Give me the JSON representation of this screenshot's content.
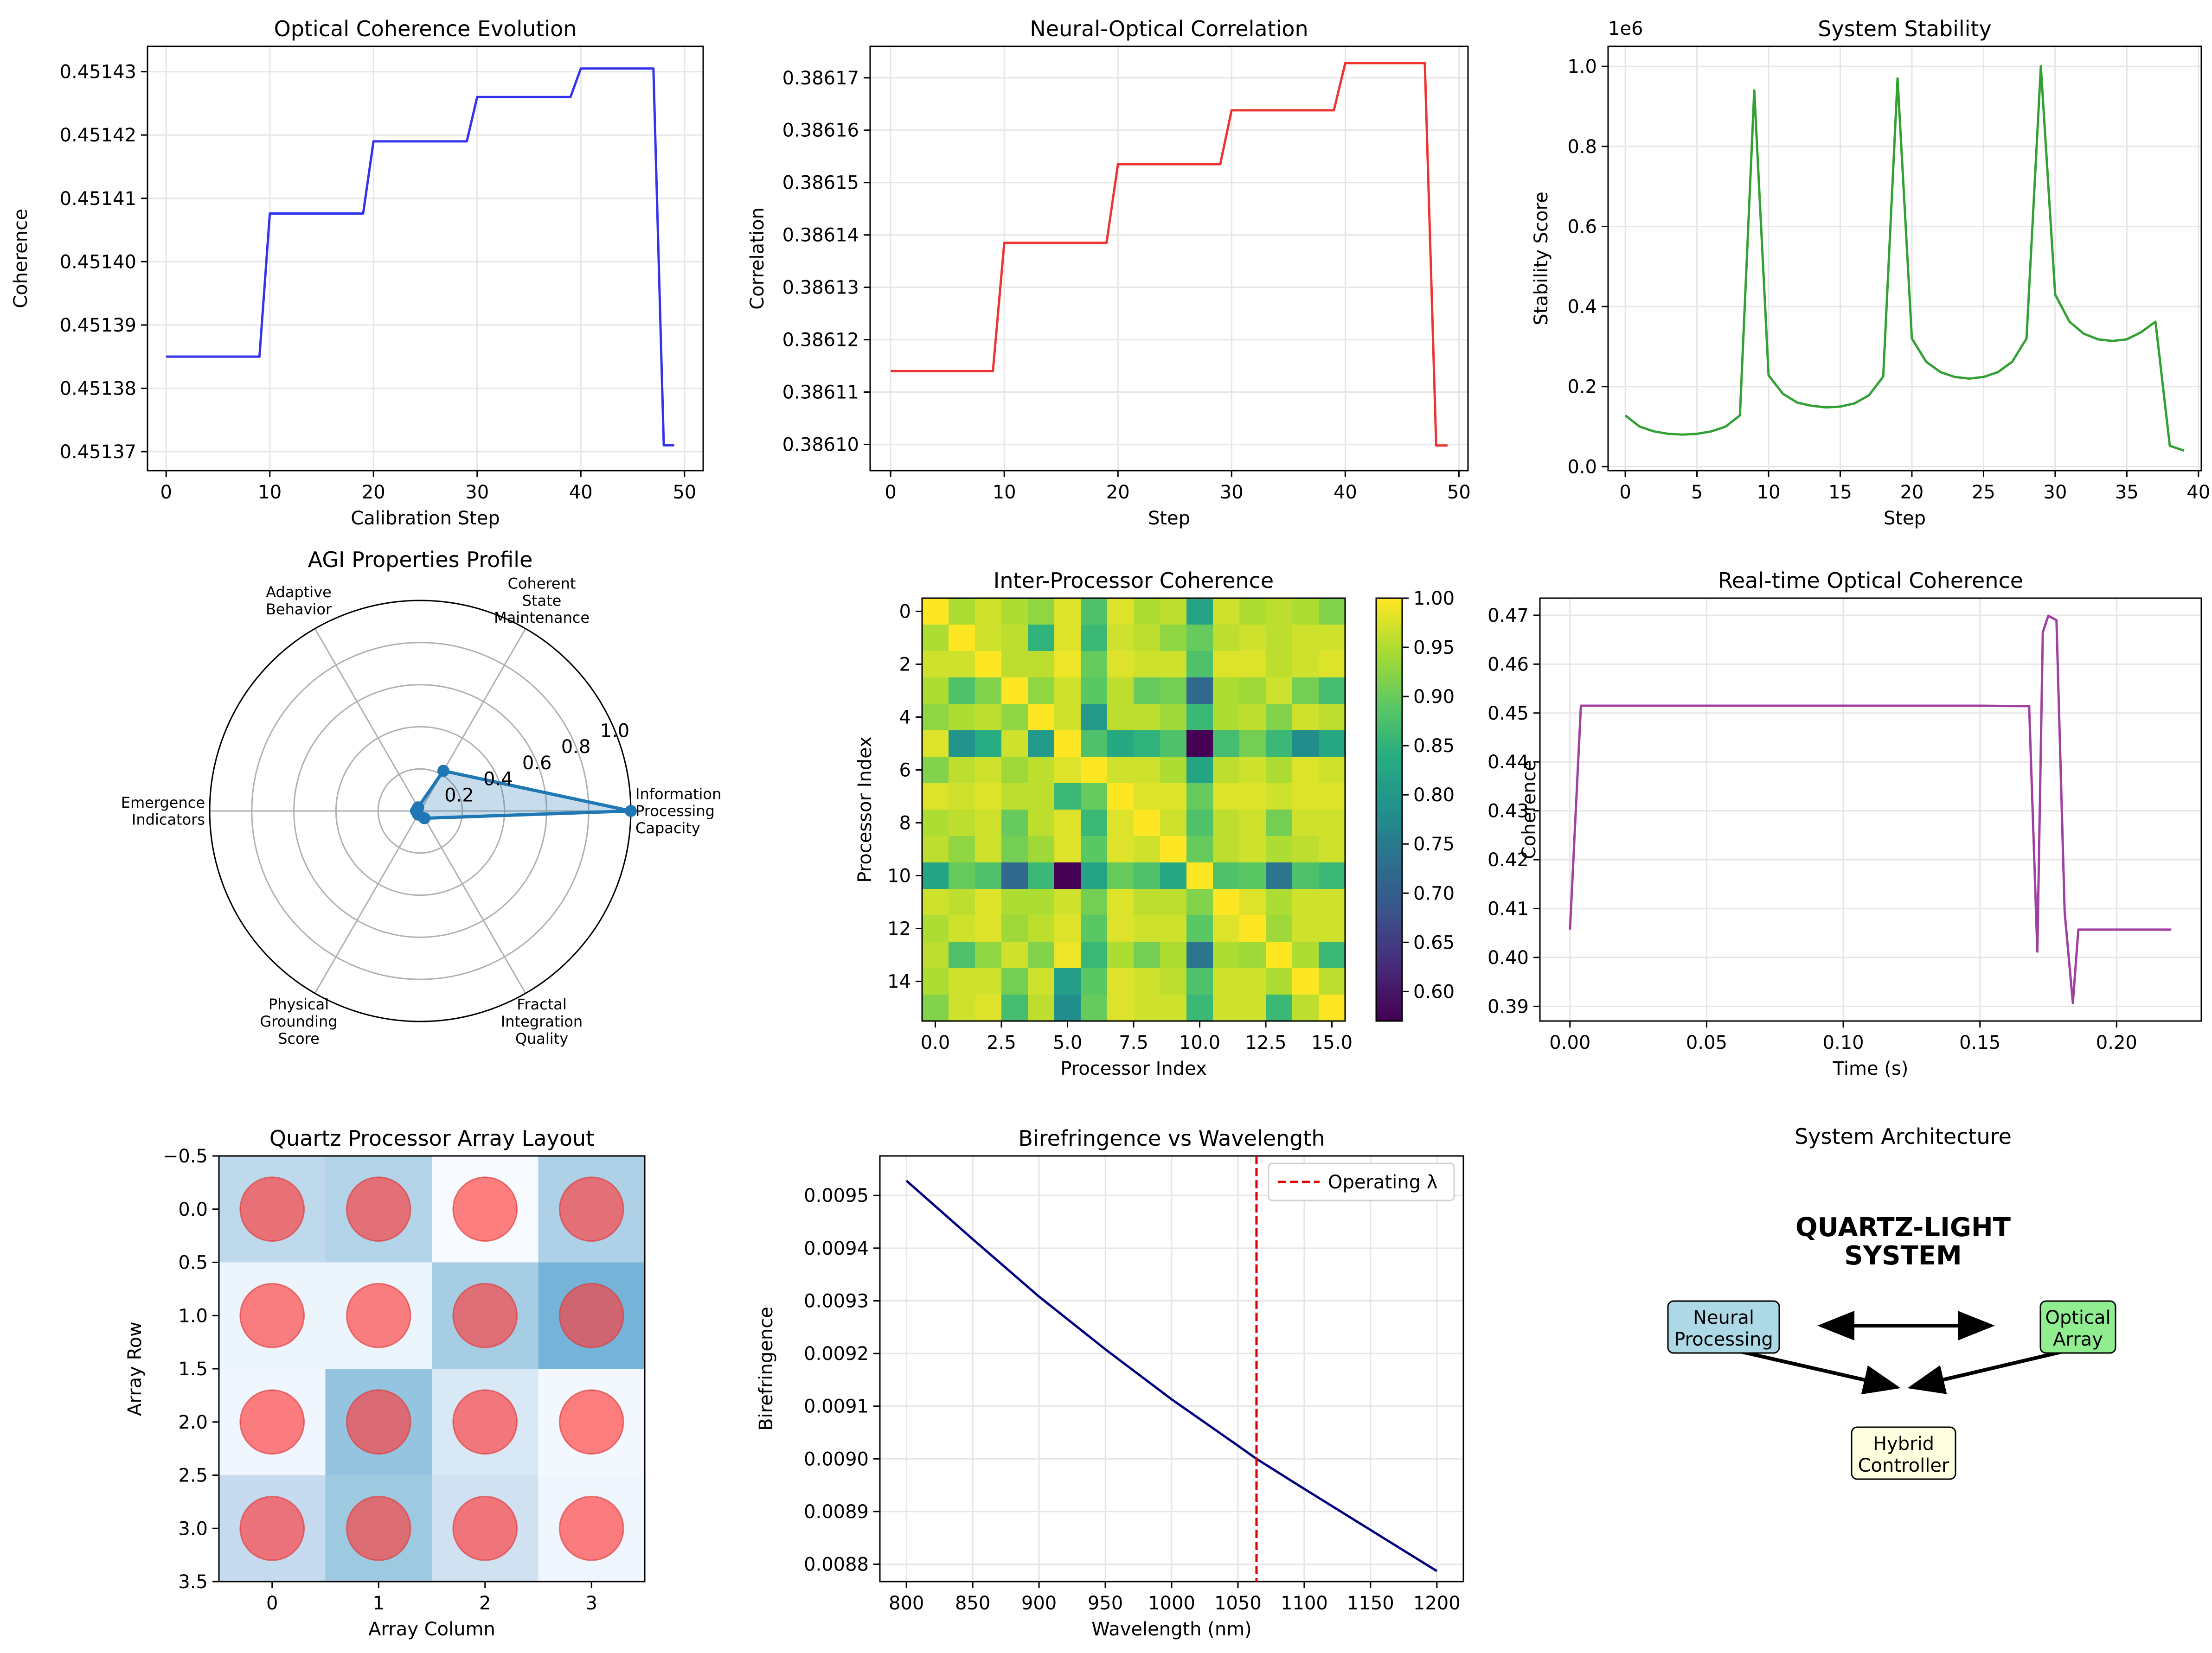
{
  "chart_data": [
    {
      "type": "line",
      "title": "Optical Coherence Evolution",
      "xlabel": "Calibration Step",
      "ylabel": "Coherence",
      "xlim": [
        -1.8,
        51.8
      ],
      "ylim": [
        0.451367,
        0.451434
      ],
      "xticks": [
        0,
        10,
        20,
        30,
        40,
        50
      ],
      "xtick_labels": [
        "0",
        "10",
        "20",
        "30",
        "40",
        "50"
      ],
      "yticks": [
        0.45137,
        0.45138,
        0.45139,
        0.4514,
        0.45141,
        0.45142,
        0.45143
      ],
      "ytick_labels": [
        "0.45137",
        "0.45138",
        "0.45139",
        "0.45140",
        "0.45141",
        "0.45142",
        "0.45143"
      ],
      "grid": true,
      "color": "#3333ee",
      "series": [
        {
          "x": [
            0,
            9,
            10,
            19,
            20,
            29,
            30,
            39,
            40,
            47,
            48,
            49
          ],
          "y": [
            0.451385,
            0.451385,
            0.4514076,
            0.4514076,
            0.451419,
            0.451419,
            0.451426,
            0.451426,
            0.4514305,
            0.4514305,
            0.451371,
            0.451371
          ]
        }
      ]
    },
    {
      "type": "line",
      "title": "Neural-Optical Correlation",
      "xlabel": "Step",
      "ylabel": "Correlation",
      "xlim": [
        -1.8,
        50.8
      ],
      "ylim": [
        0.386095,
        0.386176
      ],
      "xticks": [
        0,
        10,
        20,
        30,
        40,
        50
      ],
      "xtick_labels": [
        "0",
        "10",
        "20",
        "30",
        "40",
        "50"
      ],
      "yticks": [
        0.3861,
        0.38611,
        0.38612,
        0.38613,
        0.38614,
        0.38615,
        0.38616,
        0.38617
      ],
      "ytick_labels": [
        "0.38610",
        "0.38611",
        "0.38612",
        "0.38613",
        "0.38614",
        "0.38615",
        "0.38616",
        "0.38617"
      ],
      "grid": true,
      "color": "#ee3333",
      "series": [
        {
          "x": [
            0,
            9,
            10,
            19,
            20,
            29,
            30,
            39,
            40,
            47,
            48,
            49
          ],
          "y": [
            0.386114,
            0.386114,
            0.3861385,
            0.3861385,
            0.3861535,
            0.3861535,
            0.3861638,
            0.3861638,
            0.3861728,
            0.3861728,
            0.3860998,
            0.3860998
          ]
        }
      ]
    },
    {
      "type": "line",
      "title": "System Stability",
      "xlabel": "Step",
      "ylabel": "Stability Score",
      "offset_label": "1e6",
      "xlim": [
        -1.2,
        40.2
      ],
      "ylim": [
        -0.01,
        1.05
      ],
      "xticks": [
        0,
        5,
        10,
        15,
        20,
        25,
        30,
        35,
        40
      ],
      "xtick_labels": [
        "0",
        "5",
        "10",
        "15",
        "20",
        "25",
        "30",
        "35",
        "40"
      ],
      "yticks": [
        0.0,
        0.2,
        0.4,
        0.6,
        0.8,
        1.0
      ],
      "ytick_labels": [
        "0.0",
        "0.2",
        "0.4",
        "0.6",
        "0.8",
        "1.0"
      ],
      "grid": true,
      "color": "#33a033",
      "series": [
        {
          "x": [
            0,
            1,
            2,
            3,
            4,
            5,
            6,
            7,
            8,
            9,
            10,
            11,
            12,
            13,
            14,
            15,
            16,
            17,
            18,
            19,
            20,
            21,
            22,
            23,
            24,
            25,
            26,
            27,
            28,
            29,
            30,
            31,
            32,
            33,
            34,
            35,
            36,
            37,
            38,
            39
          ],
          "y": [
            0.128,
            0.1,
            0.088,
            0.082,
            0.08,
            0.082,
            0.088,
            0.1,
            0.128,
            0.94,
            0.228,
            0.182,
            0.16,
            0.152,
            0.148,
            0.15,
            0.158,
            0.178,
            0.225,
            0.97,
            0.32,
            0.262,
            0.236,
            0.224,
            0.22,
            0.224,
            0.236,
            0.262,
            0.32,
            1.0,
            0.43,
            0.362,
            0.332,
            0.318,
            0.314,
            0.318,
            0.336,
            0.362,
            0.052,
            0.04
          ]
        }
      ]
    },
    {
      "type": "radar",
      "title": "AGI Properties Profile",
      "axes": [
        "Information\nProcessing\nCapacity",
        "Coherent\nState\nMaintenance",
        "Adaptive\nBehavior",
        "Emergence\nIndicators",
        "Physical\nGrounding\nScore",
        "Fractal\nIntegration\nQuality"
      ],
      "values": [
        1.0,
        0.22,
        0.02,
        0.02,
        0.02,
        0.04
      ],
      "rlim": [
        0,
        1.0
      ],
      "rticks": [
        0.2,
        0.4,
        0.6,
        0.8,
        1.0
      ],
      "rtick_labels": [
        "0.2",
        "0.4",
        "0.6",
        "0.8",
        "1.0"
      ],
      "color": "#1f77b4"
    },
    {
      "type": "heatmap",
      "title": "Inter-Processor Coherence",
      "xlabel": "Processor Index",
      "ylabel": "Processor Index",
      "colormap": "viridis",
      "vmin": 0.57,
      "vmax": 1.0,
      "xticks": [
        0,
        2.5,
        5,
        7.5,
        10,
        12.5,
        15
      ],
      "xtick_labels": [
        "0.0",
        "2.5",
        "5.0",
        "7.5",
        "10.0",
        "12.5",
        "15.0"
      ],
      "yticks": [
        0,
        2,
        4,
        6,
        8,
        10,
        12,
        14
      ],
      "ytick_labels": [
        "0",
        "2",
        "4",
        "6",
        "8",
        "10",
        "12",
        "14"
      ],
      "colorbar_ticks": [
        0.6,
        0.65,
        0.7,
        0.75,
        0.8,
        0.85,
        0.9,
        0.95,
        1.0
      ],
      "colorbar_tick_labels": [
        "0.60",
        "0.65",
        "0.70",
        "0.75",
        "0.80",
        "0.85",
        "0.90",
        "0.95",
        "1.00"
      ],
      "matrix": [
        [
          1.0,
          0.95,
          0.97,
          0.95,
          0.93,
          0.98,
          0.88,
          0.98,
          0.95,
          0.96,
          0.82,
          0.97,
          0.95,
          0.96,
          0.95,
          0.92
        ],
        [
          0.95,
          1.0,
          0.97,
          0.96,
          0.85,
          0.98,
          0.86,
          0.97,
          0.96,
          0.93,
          0.9,
          0.96,
          0.97,
          0.96,
          0.97,
          0.97
        ],
        [
          0.97,
          0.97,
          1.0,
          0.96,
          0.96,
          0.99,
          0.9,
          0.98,
          0.97,
          0.97,
          0.88,
          0.98,
          0.98,
          0.96,
          0.97,
          0.98
        ],
        [
          0.95,
          0.88,
          0.92,
          1.0,
          0.93,
          0.97,
          0.89,
          0.96,
          0.9,
          0.91,
          0.72,
          0.95,
          0.94,
          0.97,
          0.91,
          0.87
        ],
        [
          0.93,
          0.95,
          0.96,
          0.93,
          1.0,
          0.97,
          0.8,
          0.96,
          0.96,
          0.94,
          0.86,
          0.95,
          0.96,
          0.92,
          0.97,
          0.96
        ],
        [
          0.98,
          0.79,
          0.84,
          0.97,
          0.8,
          1.0,
          0.88,
          0.83,
          0.85,
          0.88,
          0.57,
          0.87,
          0.91,
          0.86,
          0.78,
          0.83
        ],
        [
          0.92,
          0.96,
          0.97,
          0.94,
          0.96,
          0.98,
          1.0,
          0.97,
          0.97,
          0.95,
          0.82,
          0.96,
          0.97,
          0.95,
          0.98,
          0.97
        ],
        [
          0.98,
          0.97,
          0.98,
          0.96,
          0.96,
          0.86,
          0.9,
          1.0,
          0.98,
          0.98,
          0.9,
          0.98,
          0.98,
          0.97,
          0.98,
          0.98
        ],
        [
          0.95,
          0.96,
          0.97,
          0.9,
          0.96,
          0.98,
          0.86,
          0.98,
          1.0,
          0.97,
          0.88,
          0.96,
          0.97,
          0.91,
          0.97,
          0.97
        ],
        [
          0.96,
          0.93,
          0.97,
          0.91,
          0.94,
          0.98,
          0.89,
          0.98,
          0.97,
          1.0,
          0.9,
          0.96,
          0.97,
          0.95,
          0.96,
          0.97
        ],
        [
          0.82,
          0.9,
          0.88,
          0.72,
          0.86,
          0.57,
          0.82,
          0.9,
          0.88,
          0.83,
          1.0,
          0.88,
          0.89,
          0.74,
          0.88,
          0.86
        ],
        [
          0.97,
          0.96,
          0.98,
          0.95,
          0.95,
          0.97,
          0.91,
          0.98,
          0.96,
          0.96,
          0.92,
          1.0,
          0.98,
          0.95,
          0.97,
          0.97
        ],
        [
          0.95,
          0.97,
          0.98,
          0.94,
          0.96,
          0.98,
          0.89,
          0.98,
          0.97,
          0.97,
          0.89,
          0.98,
          1.0,
          0.94,
          0.97,
          0.97
        ],
        [
          0.96,
          0.88,
          0.93,
          0.97,
          0.92,
          0.99,
          0.86,
          0.95,
          0.91,
          0.95,
          0.74,
          0.95,
          0.94,
          1.0,
          0.95,
          0.86
        ],
        [
          0.95,
          0.97,
          0.97,
          0.91,
          0.97,
          0.81,
          0.89,
          0.98,
          0.97,
          0.96,
          0.88,
          0.97,
          0.97,
          0.95,
          1.0,
          0.96
        ],
        [
          0.92,
          0.97,
          0.98,
          0.87,
          0.96,
          0.78,
          0.9,
          0.98,
          0.97,
          0.97,
          0.86,
          0.97,
          0.97,
          0.86,
          0.96,
          1.0
        ]
      ]
    },
    {
      "type": "line",
      "title": "Real-time Optical Coherence",
      "xlabel": "Time (s)",
      "ylabel": "Coherence",
      "xlim": [
        -0.011,
        0.231
      ],
      "ylim": [
        0.387,
        0.4735
      ],
      "xticks": [
        0.0,
        0.05,
        0.1,
        0.15,
        0.2
      ],
      "xtick_labels": [
        "0.00",
        "0.05",
        "0.10",
        "0.15",
        "0.20"
      ],
      "yticks": [
        0.39,
        0.4,
        0.41,
        0.42,
        0.43,
        0.44,
        0.45,
        0.46,
        0.47
      ],
      "ytick_labels": [
        "0.39",
        "0.40",
        "0.41",
        "0.42",
        "0.43",
        "0.44",
        "0.45",
        "0.46",
        "0.47"
      ],
      "grid": true,
      "color": "#a040a0",
      "series": [
        {
          "x": [
            0.0,
            0.004,
            0.03,
            0.1,
            0.15,
            0.168,
            0.171,
            0.173,
            0.175,
            0.178,
            0.181,
            0.184,
            0.186,
            0.22
          ],
          "y": [
            0.4057,
            0.4515,
            0.4515,
            0.4515,
            0.4515,
            0.4514,
            0.4012,
            0.4665,
            0.4699,
            0.469,
            0.4092,
            0.3907,
            0.4057,
            0.4057
          ]
        }
      ]
    },
    {
      "type": "heatmap",
      "title": "Quartz Processor Array Layout",
      "xlabel": "Array Column",
      "ylabel": "Array Row",
      "colormap": "blues",
      "xticks": [
        0,
        1,
        2,
        3
      ],
      "xtick_labels": [
        "0",
        "1",
        "2",
        "3"
      ],
      "yticks": [
        -0.5,
        0.0,
        0.5,
        1.0,
        1.5,
        2.0,
        2.5,
        3.0,
        3.5
      ],
      "ytick_labels": [
        "−0.5",
        "0.0",
        "0.5",
        "1.0",
        "1.5",
        "2.0",
        "2.5",
        "3.0",
        "3.5"
      ],
      "matrix": [
        [
          0.22,
          0.25,
          0.0,
          0.26
        ],
        [
          0.04,
          0.04,
          0.28,
          0.38
        ],
        [
          0.03,
          0.32,
          0.12,
          0.02
        ],
        [
          0.2,
          0.3,
          0.16,
          0.03
        ]
      ],
      "markers": {
        "shape": "circle",
        "color": "#ff3b3b",
        "positions": [
          [
            0,
            0
          ],
          [
            1,
            0
          ],
          [
            2,
            0
          ],
          [
            3,
            0
          ],
          [
            0,
            1
          ],
          [
            1,
            1
          ],
          [
            2,
            1
          ],
          [
            3,
            1
          ],
          [
            0,
            2
          ],
          [
            1,
            2
          ],
          [
            2,
            2
          ],
          [
            3,
            2
          ],
          [
            0,
            3
          ],
          [
            1,
            3
          ],
          [
            2,
            3
          ],
          [
            3,
            3
          ]
        ]
      }
    },
    {
      "type": "line",
      "title": "Birefringence vs Wavelength",
      "xlabel": "Wavelength (nm)",
      "ylabel": "Birefringence",
      "xlim": [
        780,
        1220
      ],
      "ylim": [
        0.008767,
        0.009575
      ],
      "xticks": [
        800,
        850,
        900,
        950,
        1000,
        1050,
        1100,
        1150,
        1200
      ],
      "xtick_labels": [
        "800",
        "850",
        "900",
        "950",
        "1000",
        "1050",
        "1100",
        "1150",
        "1200"
      ],
      "yticks": [
        0.0088,
        0.0089,
        0.009,
        0.0091,
        0.0092,
        0.0093,
        0.0094,
        0.0095
      ],
      "ytick_labels": [
        "0.0088",
        "0.0089",
        "0.0090",
        "0.0091",
        "0.0092",
        "0.0093",
        "0.0094",
        "0.0095"
      ],
      "grid": true,
      "color": "#000080",
      "series": [
        {
          "x": [
            800,
            850,
            900,
            950,
            1000,
            1050,
            1064,
            1100,
            1150,
            1200
          ],
          "y": [
            0.009528,
            0.009417,
            0.009308,
            0.009208,
            0.009113,
            0.009025,
            0.009,
            0.008943,
            0.008865,
            0.008787
          ]
        }
      ],
      "reference_line": {
        "x": 1064,
        "color": "#e00000",
        "style": "dashed",
        "label": "Operating λ"
      },
      "legend": {
        "entries": [
          "Operating λ"
        ],
        "placement": "upper right"
      }
    }
  ],
  "architecture": {
    "title": "System Architecture",
    "heading_line1": "QUARTZ-LIGHT",
    "heading_line2": "SYSTEM",
    "nodes": [
      {
        "line1": "Neural",
        "line2": "Processing",
        "color": "#add8e6"
      },
      {
        "line1": "Optical",
        "line2": "Array",
        "color": "#90ee90"
      },
      {
        "line1": "Hybrid",
        "line2": "Controller",
        "color": "#ffffe0"
      }
    ]
  }
}
